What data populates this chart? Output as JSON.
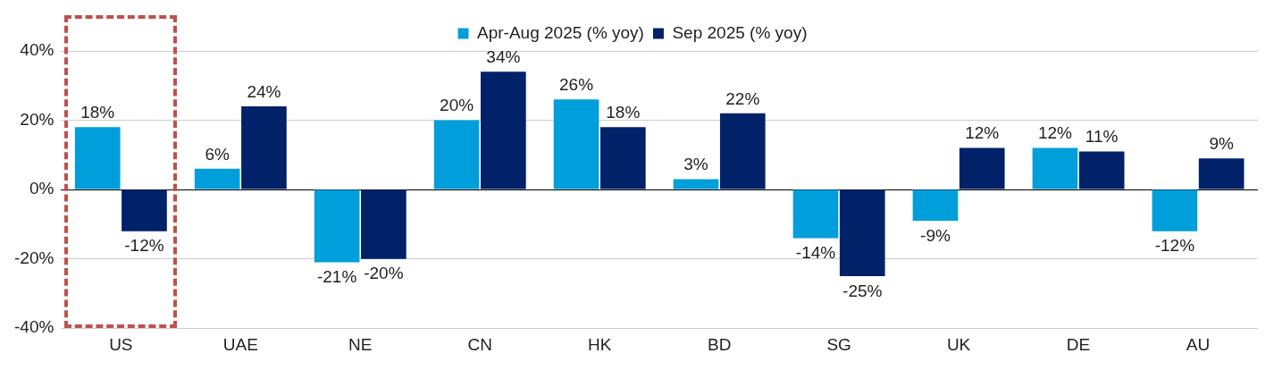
{
  "chart_data": {
    "type": "bar",
    "categories": [
      "US",
      "UAE",
      "NE",
      "CN",
      "HK",
      "BD",
      "SG",
      "UK",
      "DE",
      "AU"
    ],
    "series": [
      {
        "name": "Apr-Aug 2025 (% yoy)",
        "color": "#009fdb",
        "values": [
          18,
          6,
          -21,
          20,
          26,
          3,
          -14,
          -9,
          12,
          -12
        ],
        "value_labels": [
          "18%",
          "6%",
          "-21%",
          "20%",
          "26%",
          "3%",
          "-14%",
          "-9%",
          "12%",
          "-12%"
        ]
      },
      {
        "name": "Sep 2025 (% yoy)",
        "color": "#012169",
        "values": [
          -12,
          24,
          -20,
          34,
          18,
          22,
          -25,
          12,
          11,
          9
        ],
        "value_labels": [
          "-12%",
          "24%",
          "-20%",
          "34%",
          "18%",
          "22%",
          "-25%",
          "12%",
          "11%",
          "9%"
        ]
      }
    ],
    "ylim": [
      -40,
      40
    ],
    "yticks": [
      {
        "value": -40,
        "label": "-40%"
      },
      {
        "value": -20,
        "label": "-20%"
      },
      {
        "value": 0,
        "label": "0%"
      },
      {
        "value": 20,
        "label": "20%"
      },
      {
        "value": 40,
        "label": "40%"
      }
    ],
    "grid": "y",
    "legend": "top"
  }
}
